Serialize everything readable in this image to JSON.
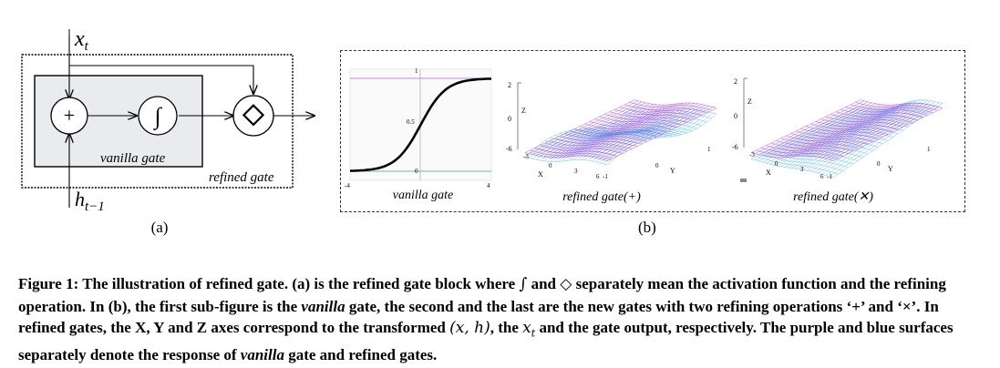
{
  "figure_a": {
    "input_top": "x",
    "input_top_sub": "t",
    "input_bottom": "h",
    "input_bottom_sub": "t−1",
    "plus_symbol": "+",
    "sigmoid_symbol": "∫",
    "diamond_symbol": "◇",
    "vanilla_label": "vanilla gate",
    "refined_label": "refined gate",
    "sub_label": "(a)"
  },
  "figure_b": {
    "sub_label": "(b)",
    "panel1": {
      "label": "vanilla gate",
      "y_ticks": [
        "1",
        "0.5",
        "0"
      ],
      "x_ticks": [
        "-4",
        "4"
      ]
    },
    "panel2": {
      "label": "refined gate(+)",
      "z_axis": "Z",
      "z_ticks": [
        "2",
        "0",
        "-6"
      ],
      "x_axis": "X",
      "x_ticks": [
        "-3",
        "0",
        "3",
        "6"
      ],
      "y_axis": "Y",
      "y_ticks": [
        "-1",
        "0",
        "1"
      ]
    },
    "panel3": {
      "label": "refined gate(✕)",
      "z_axis": "Z",
      "z_ticks": [
        "2",
        "0",
        "-6"
      ],
      "x_axis": "X",
      "x_ticks": [
        "-3",
        "0",
        "3",
        "6"
      ],
      "y_axis": "Y",
      "y_ticks": [
        "-1",
        "0",
        "1"
      ]
    },
    "colors": {
      "vanilla_surface": "#9b30d9",
      "refined_surface": "#4fb6e6"
    }
  },
  "caption": {
    "prefix": "Figure 1: The illustration of refined gate. (a) is the refined gate block where ",
    "sym1": "∫",
    "mid1": " and ",
    "sym2": "◇",
    "mid2": " separately mean the activation function and the refining operation. In (b), the first sub-figure is the ",
    "vanilla1": "vanilla",
    "mid3": " gate, the second and the last are the new gates with two refining operations ‘+’ and ‘×’. In refined gates, the X, Y and Z axes correspond to the transformed ",
    "math1": "(x, h)",
    "mid4": ", the ",
    "math2": "x",
    "math2_sub": "t",
    "mid5": " and the gate output, respectively. The purple and blue surfaces separately denote the response of ",
    "vanilla2": "vanilla",
    "suffix": " gate and refined gates."
  }
}
